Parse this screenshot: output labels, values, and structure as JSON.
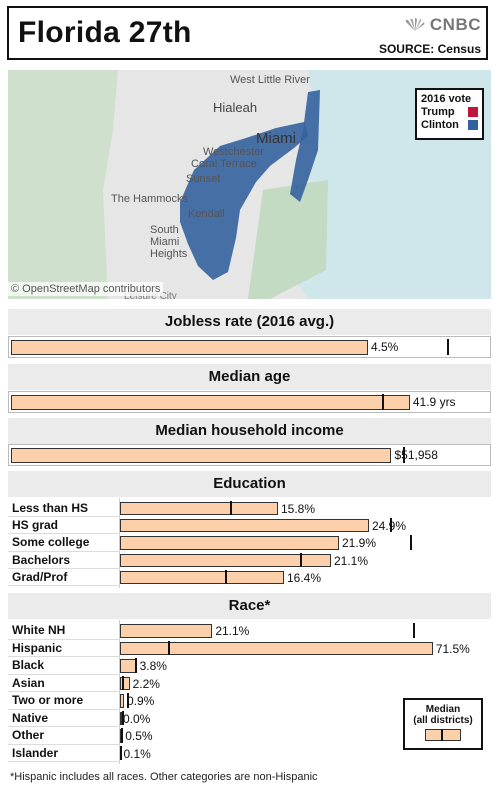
{
  "header": {
    "title": "Florida 27th",
    "brand": "CNBC",
    "source": "SOURCE: Census"
  },
  "map": {
    "labels": [
      "West Little River",
      "Hialeah",
      "Miami",
      "Westchester",
      "Coral Terrace",
      "Sunset",
      "The Hammocks",
      "Kendall",
      "South Miami Heights",
      "Leisure City"
    ],
    "attribution": "© OpenStreetMap contributors",
    "legend": {
      "title": "2016 vote",
      "items": [
        {
          "label": "Trump",
          "color": "#c0163a"
        },
        {
          "label": "Clinton",
          "color": "#34629d"
        }
      ]
    },
    "district_color": "#34629d"
  },
  "colors": {
    "bar_fill": "#fdd0ac",
    "bar_stroke": "#333333",
    "median_tick": "#111111",
    "section_bg": "#ebebeb"
  },
  "median_legend": {
    "line1": "Median",
    "line2": "(all districts)"
  },
  "footnote": "*Hispanic includes all races. Other categories are non-Hispanic",
  "chart_data": [
    {
      "type": "bar",
      "title": "Jobless rate (2016 avg.)",
      "values": [
        4.5
      ],
      "value_labels": [
        "4.5%"
      ],
      "median": 5.5,
      "xlim": [
        0,
        6.0
      ]
    },
    {
      "type": "bar",
      "title": "Median age",
      "values": [
        41.9
      ],
      "value_labels": [
        "41.9 yrs"
      ],
      "median": 39.0,
      "xlim": [
        0,
        50.0
      ]
    },
    {
      "type": "bar",
      "title": "Median household income",
      "values": [
        51958
      ],
      "value_labels": [
        "$51,958"
      ],
      "median": 53500,
      "xlim": [
        0,
        65000
      ]
    },
    {
      "type": "bar",
      "title": "Education",
      "categories": [
        "Less than HS",
        "HS grad",
        "Some college",
        "Bachelors",
        "Grad/Prof"
      ],
      "values": [
        15.8,
        24.9,
        21.9,
        21.1,
        16.4
      ],
      "value_labels": [
        "15.8%",
        "24.9%",
        "21.9%",
        "21.1%",
        "16.4%"
      ],
      "medians": [
        11.0,
        27.0,
        29.0,
        18.0,
        10.5
      ],
      "xlim": [
        0,
        35
      ]
    },
    {
      "type": "bar",
      "title": "Race*",
      "categories": [
        "White NH",
        "Hispanic",
        "Black",
        "Asian",
        "Two or more",
        "Native",
        "Other",
        "Islander"
      ],
      "values": [
        21.1,
        71.5,
        3.8,
        2.2,
        0.9,
        0.0,
        0.5,
        0.1
      ],
      "value_labels": [
        "21.1%",
        "71.5%",
        "3.8%",
        "2.2%",
        "0.9%",
        "0.0%",
        "0.5%",
        "0.1%"
      ],
      "medians": [
        67.0,
        11.0,
        3.5,
        0.5,
        1.5,
        0.4,
        0.3,
        0.1
      ],
      "xlim": [
        0,
        80
      ]
    }
  ]
}
